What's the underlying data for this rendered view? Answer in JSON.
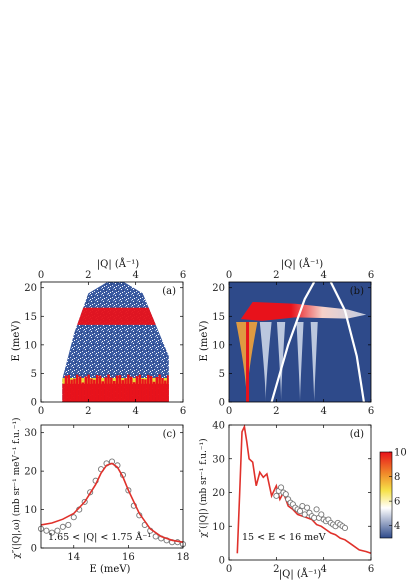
{
  "chart_data": [
    {
      "id": "a",
      "type": "heatmap",
      "panel_label": "(a)",
      "xlabel_top": "|Q| (Å⁻¹)",
      "ylabel": "E (meV)",
      "xlim": [
        0,
        6
      ],
      "ylim": [
        0,
        21
      ],
      "xticks": [
        0,
        2,
        4,
        6
      ],
      "yticks": [
        0,
        5,
        10,
        15,
        20
      ],
      "coverage": {
        "q": [
          0.9,
          1.4,
          2.0,
          2.8,
          3.5,
          4.3,
          5.4
        ],
        "e_max": [
          4,
          12,
          19,
          21,
          21,
          19,
          8
        ]
      },
      "bands": [
        {
          "e_min": 13.5,
          "e_max": 16.5,
          "color": "#e8121b"
        },
        {
          "e_min": 0,
          "e_max": 3.2,
          "color": "#e8121b"
        },
        {
          "e_min": 3.2,
          "e_max": 4.2,
          "color": "#f0e030"
        }
      ],
      "background_color": "#2e4a8a"
    },
    {
      "id": "b",
      "type": "heatmap",
      "panel_label": "(b)",
      "xlabel_top": "|Q| (Å⁻¹)",
      "ylabel": "E (meV)",
      "xlim": [
        0,
        6
      ],
      "ylim": [
        0,
        21
      ],
      "xticks": [
        0,
        2,
        4,
        6
      ],
      "yticks": [
        0,
        5,
        10,
        15,
        20
      ],
      "kinematic_limits": [
        {
          "q": [
            1.8,
            2.5,
            3.2,
            3.6
          ],
          "e": [
            0,
            10,
            18,
            21
          ]
        },
        {
          "q": [
            4.3,
            4.9,
            5.4,
            5.7
          ],
          "e": [
            21,
            16,
            8,
            0
          ]
        }
      ],
      "background_color": "#2e4a8a"
    },
    {
      "id": "c",
      "type": "line",
      "panel_label": "(c)",
      "xlabel": "E (meV)",
      "ylabel": "χ″(|Q|,ω) (mb sr⁻¹ meV⁻¹ f.u.⁻¹)",
      "annotation": "1.65 < |Q| < 1.75 Å⁻¹",
      "xlim": [
        12.8,
        18
      ],
      "ylim": [
        0,
        32
      ],
      "xticks": [
        14,
        16,
        18
      ],
      "yticks": [
        0,
        10,
        20,
        30
      ],
      "series": [
        {
          "kind": "points",
          "x": [
            12.8,
            13.0,
            13.2,
            13.4,
            13.6,
            13.8,
            14.0,
            14.2,
            14.4,
            14.6,
            14.8,
            15.0,
            15.2,
            15.4,
            15.6,
            15.8,
            16.0,
            16.2,
            16.4,
            16.6,
            16.8,
            17.0,
            17.2,
            17.4,
            17.6,
            17.8,
            18.0
          ],
          "y": [
            5.0,
            4.5,
            4.0,
            4.5,
            5.5,
            6.0,
            8.0,
            10.0,
            12.0,
            14.5,
            17.5,
            20.5,
            22.0,
            22.5,
            21.5,
            19.0,
            15.0,
            11.0,
            8.5,
            6.0,
            4.5,
            3.0,
            2.5,
            2.0,
            1.5,
            1.5,
            1.0
          ]
        },
        {
          "kind": "line",
          "color": "#e0312b",
          "x": [
            12.8,
            13.2,
            13.6,
            14.0,
            14.4,
            14.8,
            15.0,
            15.2,
            15.4,
            15.6,
            15.8,
            16.0,
            16.4,
            16.8,
            17.2,
            17.6,
            18.0
          ],
          "y": [
            6.0,
            6.5,
            7.5,
            9.0,
            12.0,
            16.5,
            19.5,
            21.5,
            22.0,
            21.0,
            18.5,
            15.0,
            9.0,
            5.0,
            3.0,
            2.0,
            1.5
          ]
        }
      ]
    },
    {
      "id": "d",
      "type": "line",
      "panel_label": "(d)",
      "xlabel": "|Q| (Å⁻¹)",
      "ylabel": "χ″(|Q|) (mb sr⁻¹ f.u.⁻¹)",
      "annotation": "15 < E < 16 meV",
      "xlim": [
        0,
        6
      ],
      "ylim": [
        0,
        40
      ],
      "xticks": [
        0,
        2,
        4,
        6
      ],
      "yticks": [
        0,
        10,
        20,
        30,
        40
      ],
      "series": [
        {
          "kind": "line",
          "color": "#e0312b",
          "x": [
            0.35,
            0.45,
            0.55,
            0.65,
            0.75,
            0.85,
            1.0,
            1.15,
            1.3,
            1.45,
            1.6,
            1.8,
            2.0,
            2.15,
            2.3,
            2.5,
            2.7,
            2.9,
            3.1,
            3.3,
            3.5,
            3.7,
            3.9,
            4.1,
            4.3,
            4.5,
            4.7,
            4.9,
            5.2,
            5.5,
            5.8,
            6.0
          ],
          "y": [
            2.0,
            20.0,
            38.0,
            39.5,
            35.0,
            30.0,
            29.0,
            22.0,
            26.0,
            24.5,
            25.5,
            19.0,
            22.0,
            18.0,
            20.0,
            16.0,
            15.0,
            13.5,
            13.0,
            12.5,
            12.0,
            10.5,
            10.0,
            9.0,
            8.0,
            7.5,
            6.5,
            6.0,
            4.5,
            3.0,
            2.5,
            2.0
          ]
        },
        {
          "kind": "points",
          "x": [
            2.0,
            2.1,
            2.2,
            2.3,
            2.4,
            2.5,
            2.6,
            2.7,
            2.8,
            2.9,
            3.0,
            3.1,
            3.2,
            3.3,
            3.4,
            3.5,
            3.6,
            3.7,
            3.8,
            3.9,
            4.0,
            4.1,
            4.2,
            4.3,
            4.4,
            4.5,
            4.6,
            4.7,
            4.8,
            4.9
          ],
          "y": [
            19.0,
            20.5,
            21.5,
            20.0,
            19.5,
            18.0,
            17.0,
            16.5,
            15.5,
            15.0,
            14.5,
            16.0,
            13.5,
            15.5,
            14.0,
            13.0,
            12.5,
            15.0,
            12.5,
            13.5,
            12.0,
            11.5,
            12.0,
            11.0,
            10.5,
            10.0,
            11.0,
            10.5,
            10.0,
            9.5
          ]
        }
      ],
      "colorbar": {
        "ticks": [
          4,
          6,
          8,
          10
        ],
        "range": [
          3,
          10
        ],
        "stops": [
          "#2e4a8a",
          "#ffffff",
          "#f6e24a",
          "#f08a2a",
          "#e8121b"
        ]
      }
    }
  ]
}
